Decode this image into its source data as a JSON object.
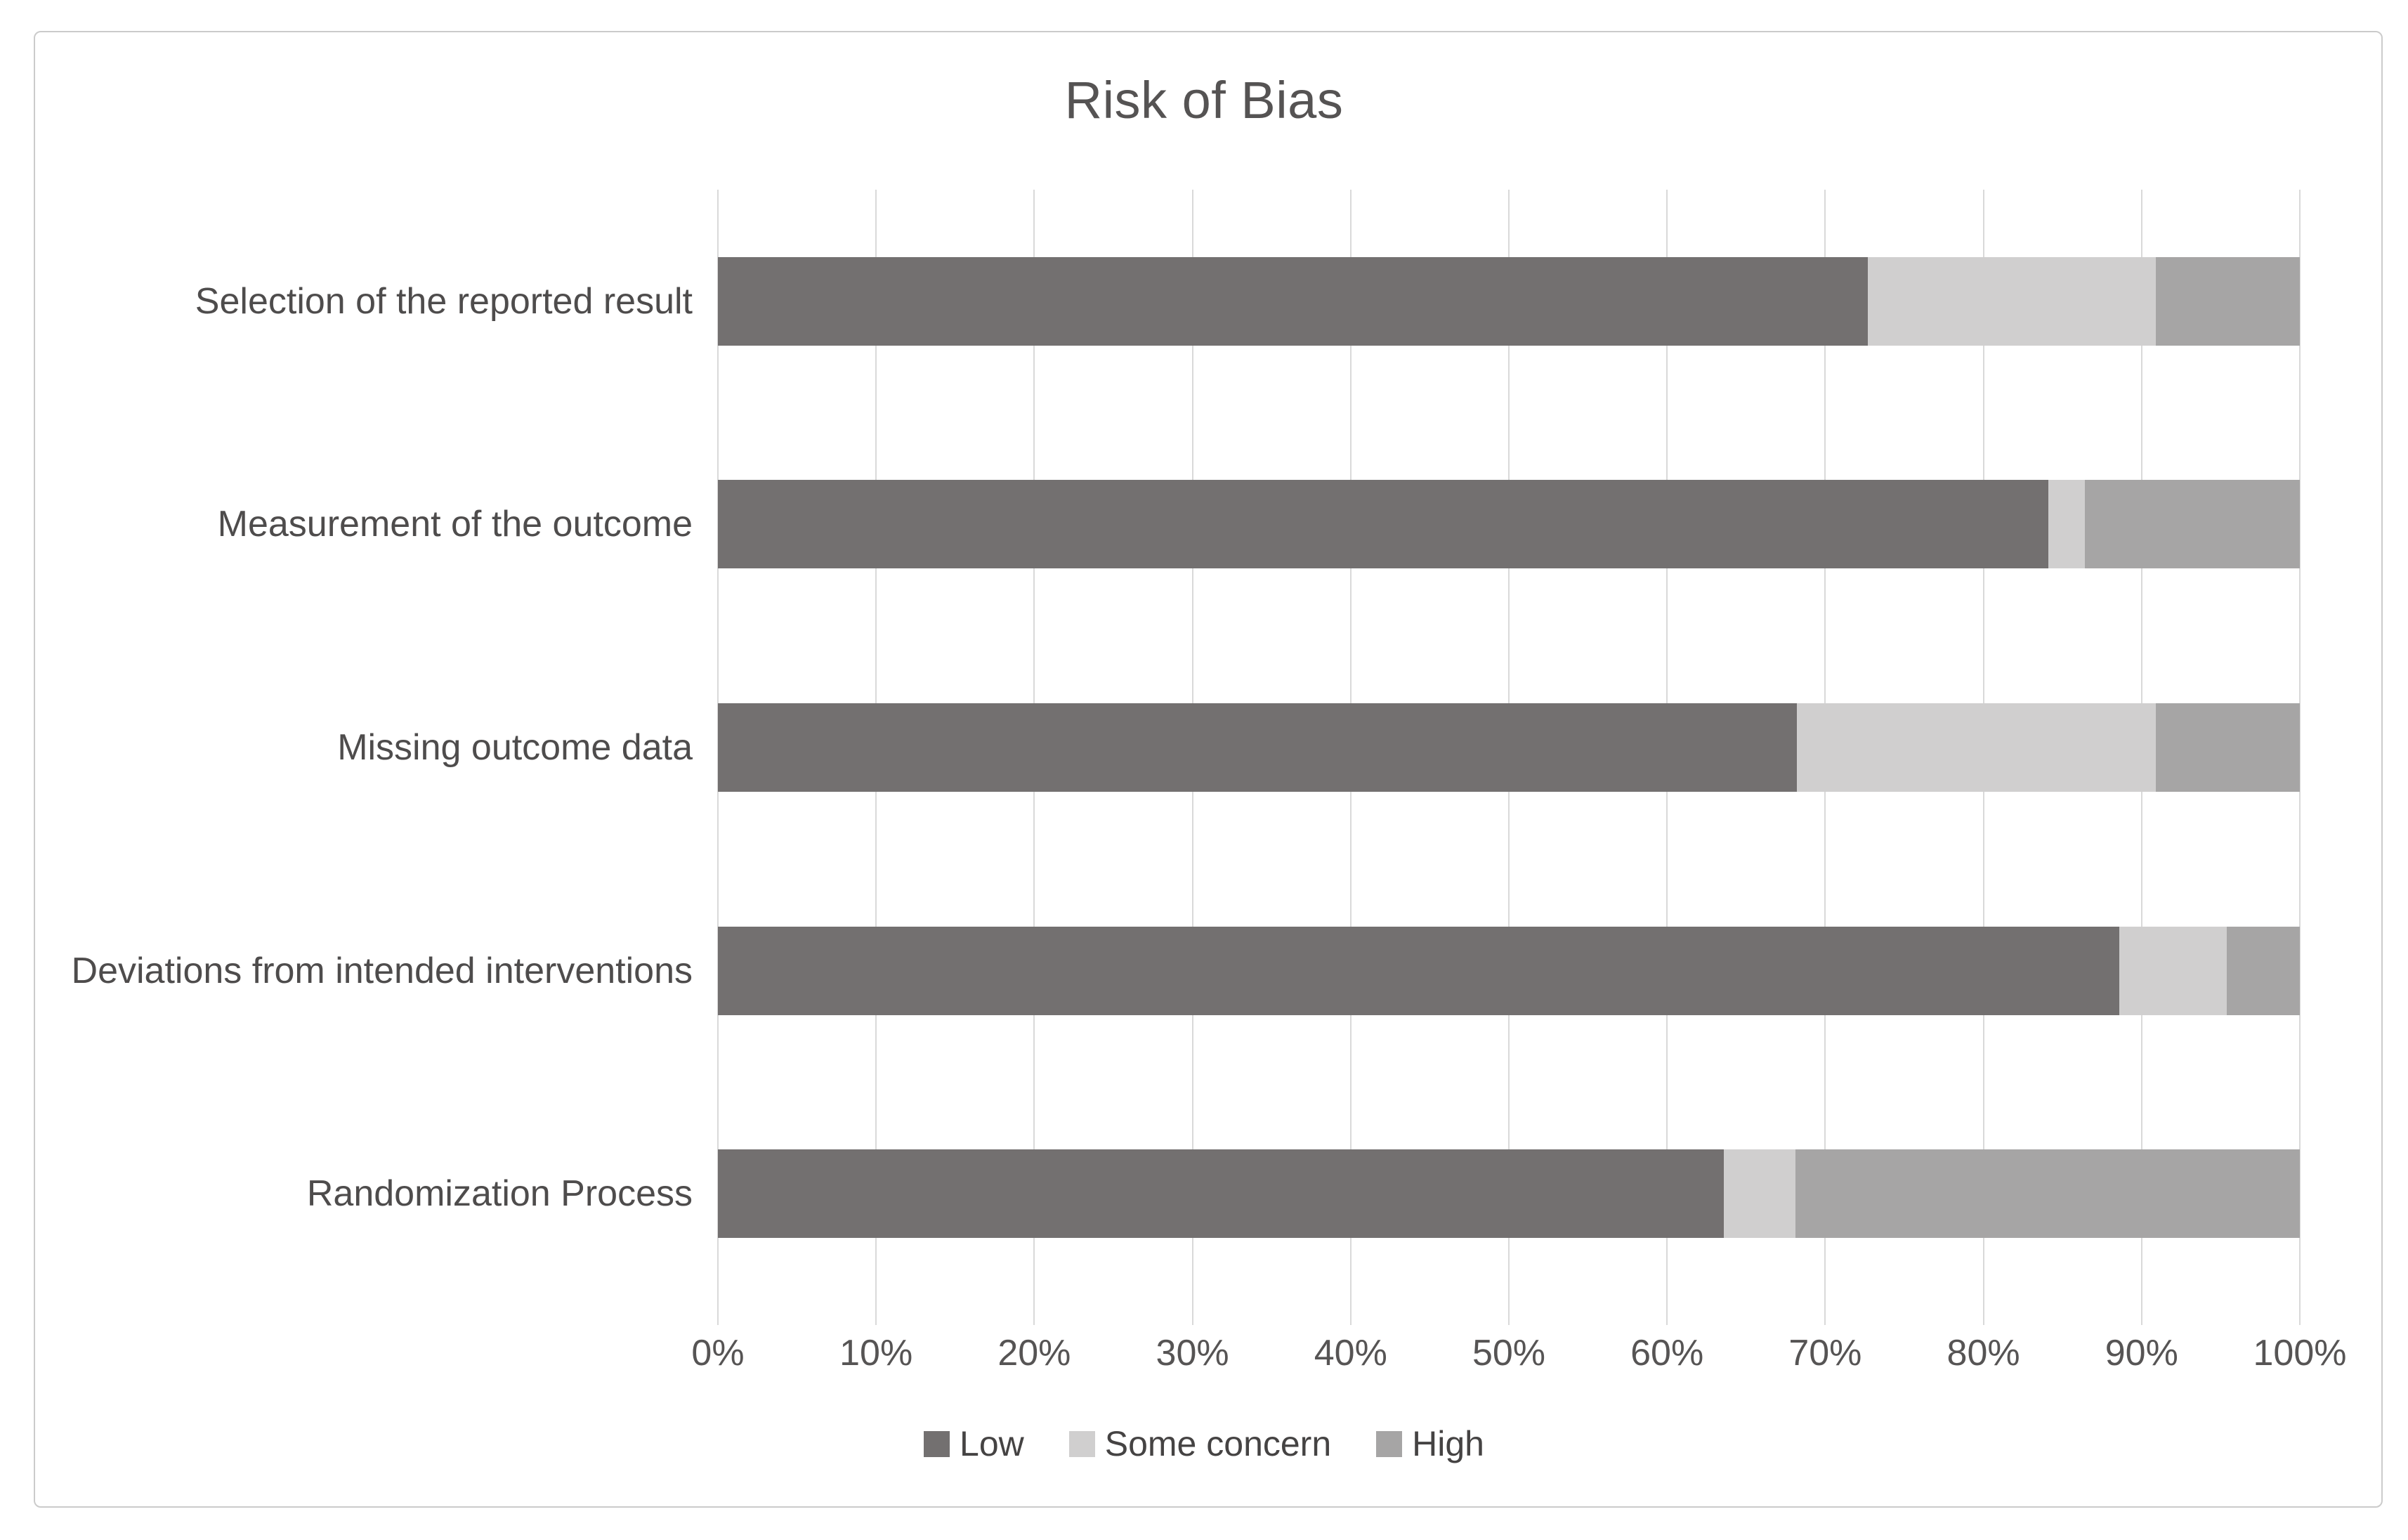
{
  "figure": {
    "title": "Risk of Bias"
  },
  "chart_data": {
    "type": "bar",
    "subtype": "horizontal-stacked",
    "title": "Risk of Bias",
    "categories_top_to_bottom": [
      "Selection of the reported result",
      "Measurement of the outcome",
      "Missing outcome data",
      "Deviations from intended interventions",
      "Randomization Process"
    ],
    "series": [
      {
        "name": "Low",
        "color": "#737070",
        "values": [
          72.7,
          84.1,
          68.2,
          88.6,
          63.6
        ]
      },
      {
        "name": "Some concern",
        "color": "#d0cfcf",
        "values": [
          18.2,
          2.3,
          22.7,
          6.8,
          4.5
        ]
      },
      {
        "name": "High",
        "color": "#a6a5a5",
        "values": [
          9.1,
          13.6,
          9.1,
          4.6,
          31.9
        ]
      }
    ],
    "xlabel": "",
    "ylabel": "",
    "xlim": [
      0,
      100
    ],
    "x_tick_labels": [
      "0%",
      "10%",
      "20%",
      "30%",
      "40%",
      "50%",
      "60%",
      "70%",
      "80%",
      "90%",
      "100%"
    ],
    "grid": "vertical",
    "gridline_color": "#d9d9d9",
    "legend_position": "bottom",
    "legend_entries": [
      "Low",
      "Some concern",
      "High"
    ]
  }
}
